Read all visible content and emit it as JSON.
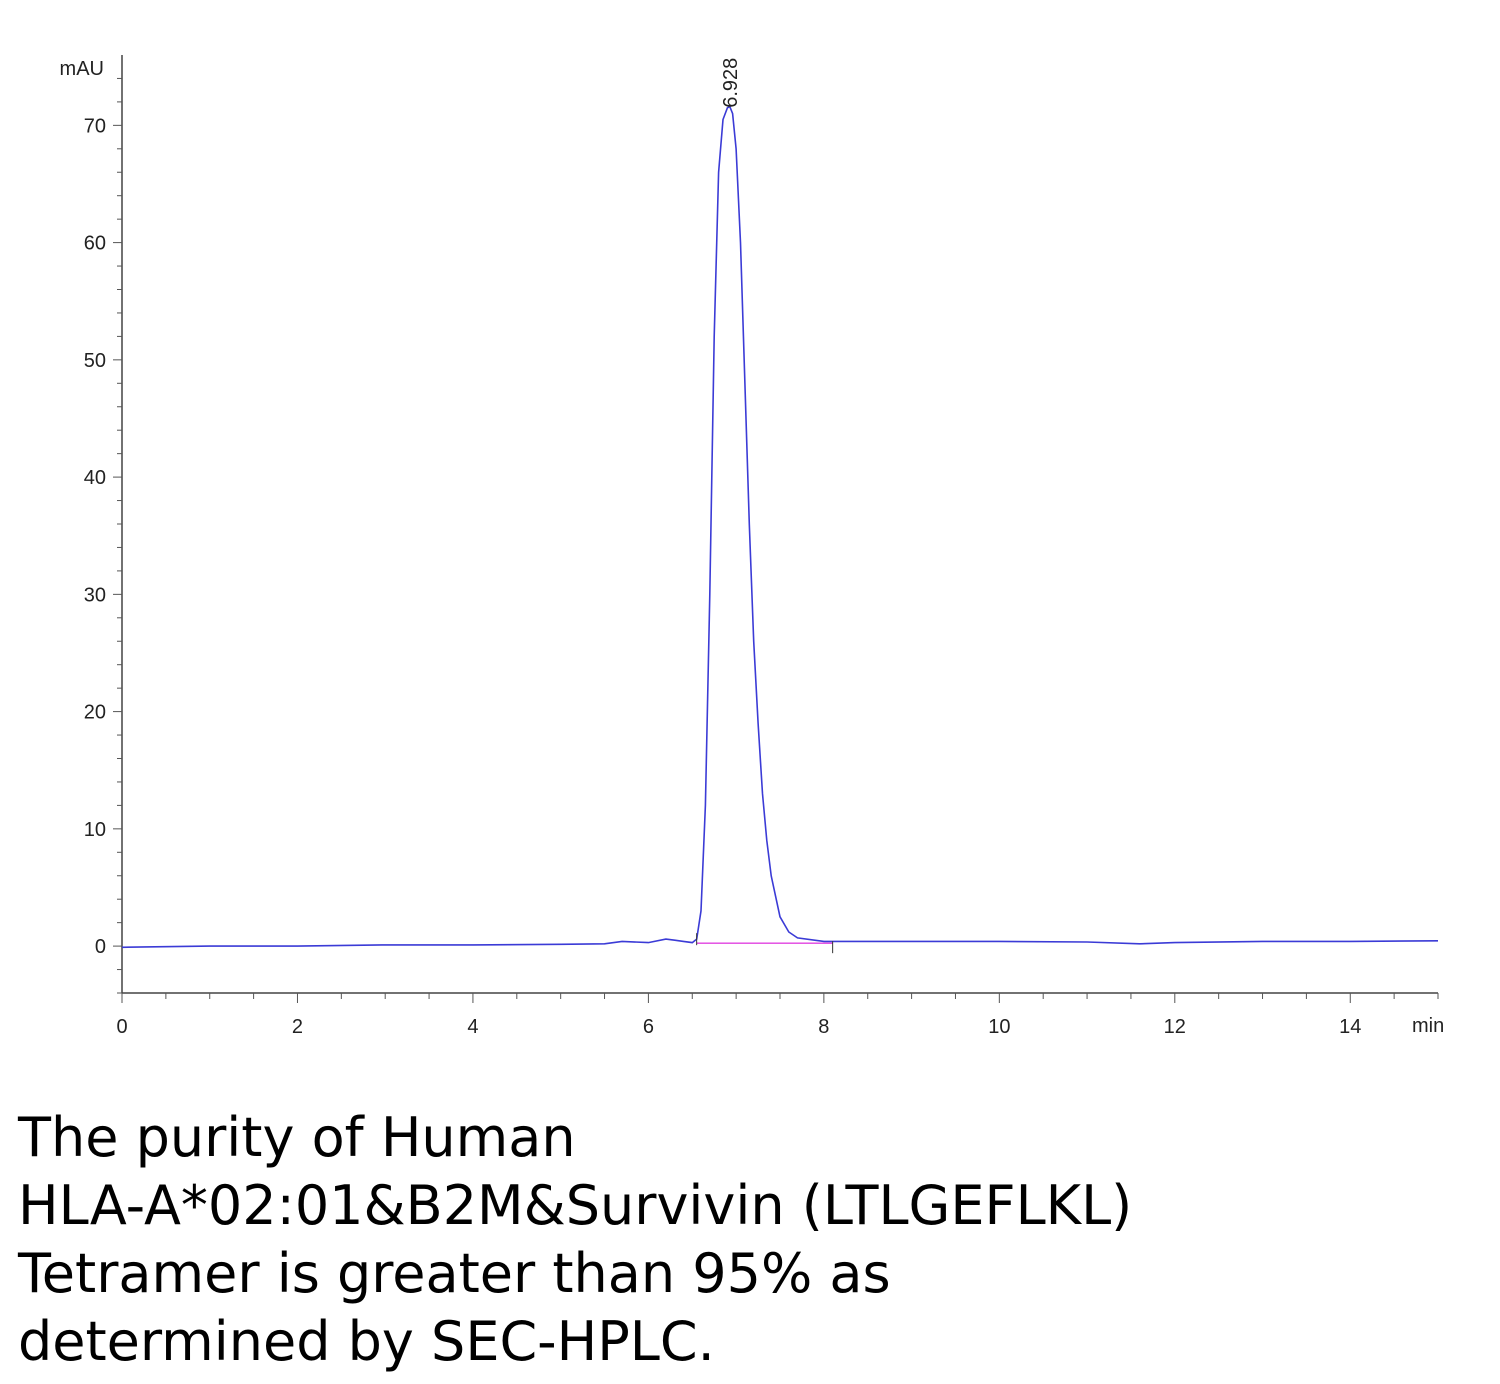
{
  "chart_data": {
    "type": "line",
    "ylabel": "mAU",
    "xlabel": "min",
    "xlim": [
      0,
      15
    ],
    "ylim": [
      -4,
      76
    ],
    "x_ticks": [
      0,
      2,
      4,
      6,
      8,
      10,
      12,
      14
    ],
    "y_ticks": [
      0,
      10,
      20,
      30,
      40,
      50,
      60,
      70
    ],
    "grid": false,
    "peak_annotation": {
      "label": "6.928",
      "x": 6.928,
      "y": 71.5
    },
    "series": [
      {
        "color": "#3b3bd6",
        "x": [
          0,
          1,
          2,
          3,
          4,
          5,
          5.5,
          5.7,
          6.0,
          6.2,
          6.3,
          6.4,
          6.5,
          6.55,
          6.6,
          6.65,
          6.7,
          6.75,
          6.8,
          6.85,
          6.9,
          6.928,
          6.96,
          7.0,
          7.05,
          7.1,
          7.15,
          7.2,
          7.25,
          7.3,
          7.35,
          7.4,
          7.5,
          7.6,
          7.7,
          8.0,
          9,
          10,
          11,
          11.6,
          12,
          13,
          14,
          15
        ],
        "values": [
          -0.1,
          0.0,
          0.0,
          0.1,
          0.1,
          0.15,
          0.2,
          0.4,
          0.3,
          0.6,
          0.5,
          0.4,
          0.3,
          0.6,
          3,
          12,
          30,
          52,
          66,
          70.5,
          71.5,
          71.6,
          71.0,
          68,
          60,
          48,
          36,
          26,
          19,
          13,
          9,
          6,
          2.5,
          1.2,
          0.7,
          0.4,
          0.4,
          0.4,
          0.35,
          0.2,
          0.3,
          0.4,
          0.4,
          0.45
        ]
      },
      {
        "color": "#e040e0",
        "x": [
          6.55,
          8.1
        ],
        "values": [
          0.25,
          0.25
        ]
      }
    ]
  },
  "caption": {
    "lines": [
      "The purity of Human",
      "HLA-A*02:01&B2M&Survivin (LTLGEFLKL)",
      "Tetramer is greater than 95% as",
      "determined by SEC-HPLC."
    ]
  }
}
